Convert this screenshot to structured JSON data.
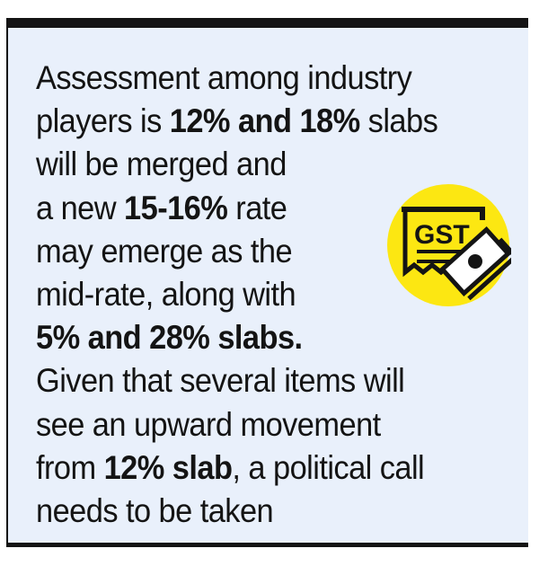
{
  "callout": {
    "lines": [
      [
        {
          "t": "Assessment among industry",
          "b": false
        }
      ],
      [
        {
          "t": "players is ",
          "b": false
        },
        {
          "t": "12% and 18%",
          "b": true
        },
        {
          "t": " slabs",
          "b": false
        }
      ],
      [
        {
          "t": "will be merged and",
          "b": false
        }
      ],
      [
        {
          "t": "a new ",
          "b": false
        },
        {
          "t": "15-16%",
          "b": true
        },
        {
          "t": " rate",
          "b": false
        }
      ],
      [
        {
          "t": "may emerge as the",
          "b": false
        }
      ],
      [
        {
          "t": "mid-rate, along with",
          "b": false
        }
      ],
      [
        {
          "t": "5% and 28% slabs.",
          "b": true
        }
      ],
      [
        {
          "t": "Given that several items will",
          "b": false
        }
      ],
      [
        {
          "t": "see an upward movement",
          "b": false
        }
      ],
      [
        {
          "t": "from ",
          "b": false
        },
        {
          "t": "12% slab",
          "b": true
        },
        {
          "t": ", a political call",
          "b": false
        }
      ],
      [
        {
          "t": "needs to be taken",
          "b": false
        }
      ]
    ],
    "icon": {
      "name": "gst-receipt-money-icon",
      "label": "GST",
      "circle_color": "#fce712",
      "ink_color": "#141414"
    },
    "colors": {
      "background": "#e9f0fb",
      "border": "#141414",
      "text": "#141414"
    }
  }
}
